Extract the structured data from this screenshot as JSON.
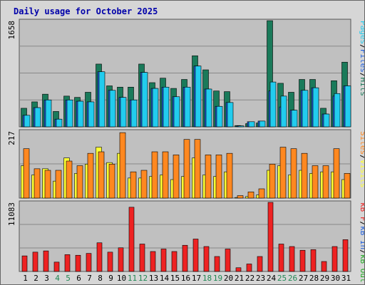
{
  "title": "Daily usage for October 2025",
  "colors": {
    "panel_bg": "#c0c0c0",
    "gridline": "#888888",
    "hits": "#1a7a5a",
    "files": "#2060dd",
    "pages": "#22ccee",
    "visits": "#ffff33",
    "sites": "#ff8820",
    "kbin": "#2060dd",
    "kbout": "#22aa22",
    "kbf": "#ee2222",
    "day_normal": "#000000",
    "day_weekend": "#228855"
  },
  "chart_data": [
    {
      "type": "bar",
      "panel": "hits-files-pages",
      "max_label": "1658",
      "ylim": [
        0,
        1658
      ],
      "side_label": [
        {
          "text": "Pages",
          "color": "#22ccee"
        },
        {
          "text": "/",
          "color": "#000000"
        },
        {
          "text": "Files",
          "color": "#2060dd"
        },
        {
          "text": "/",
          "color": "#000000"
        },
        {
          "text": "Hits",
          "color": "#1a7a5a"
        }
      ],
      "categories": [
        "1",
        "2",
        "3",
        "4",
        "5",
        "6",
        "7",
        "8",
        "9",
        "10",
        "11",
        "12",
        "13",
        "14",
        "15",
        "16",
        "17",
        "18",
        "19",
        "20",
        "21",
        "22",
        "23",
        "24",
        "25",
        "26",
        "27",
        "28",
        "29",
        "30",
        "31"
      ],
      "series": [
        {
          "name": "Hits",
          "values": [
            290,
            390,
            510,
            240,
            480,
            460,
            540,
            980,
            640,
            620,
            620,
            980,
            690,
            760,
            600,
            740,
            1110,
            890,
            560,
            550,
            20,
            50,
            60,
            1658,
            680,
            540,
            740,
            740,
            290,
            720,
            1010
          ]
        },
        {
          "name": "Files",
          "values": [
            180,
            300,
            420,
            120,
            420,
            400,
            390,
            860,
            570,
            460,
            420,
            850,
            600,
            620,
            470,
            620,
            950,
            590,
            320,
            380,
            15,
            80,
            90,
            560,
            310,
            260,
            570,
            610,
            200,
            480,
            640
          ]
        },
        {
          "name": "Pages",
          "values": [
            180,
            300,
            420,
            120,
            420,
            400,
            390,
            860,
            570,
            460,
            420,
            850,
            600,
            620,
            470,
            620,
            950,
            590,
            320,
            380,
            15,
            80,
            90,
            700,
            480,
            260,
            570,
            610,
            200,
            520,
            640
          ]
        }
      ]
    },
    {
      "type": "bar",
      "panel": "visits-sites",
      "max_label": "217",
      "ylim": [
        0,
        217
      ],
      "side_label": [
        {
          "text": "Sites",
          "color": "#ff8820"
        },
        {
          "text": "/",
          "color": "#000000"
        },
        {
          "text": "Visits",
          "color": "#ffff33"
        }
      ],
      "categories": [
        "1",
        "2",
        "3",
        "4",
        "5",
        "6",
        "7",
        "8",
        "9",
        "10",
        "11",
        "12",
        "13",
        "14",
        "15",
        "16",
        "17",
        "18",
        "19",
        "20",
        "21",
        "22",
        "23",
        "24",
        "25",
        "26",
        "27",
        "28",
        "29",
        "30",
        "31"
      ],
      "series": [
        {
          "name": "Visits",
          "values": [
            105,
            75,
            95,
            55,
            130,
            80,
            110,
            165,
            115,
            145,
            65,
            65,
            70,
            75,
            60,
            70,
            130,
            75,
            70,
            85,
            2,
            5,
            10,
            90,
            105,
            75,
            90,
            80,
            85,
            85,
            60
          ]
        },
        {
          "name": "Sites",
          "values": [
            160,
            95,
            90,
            90,
            120,
            105,
            145,
            150,
            110,
            212,
            85,
            90,
            150,
            150,
            140,
            190,
            190,
            140,
            140,
            145,
            8,
            20,
            30,
            110,
            165,
            160,
            145,
            105,
            105,
            160,
            80
          ]
        }
      ]
    },
    {
      "type": "bar",
      "panel": "kbytes",
      "max_label": "11083",
      "ylim": [
        0,
        11083
      ],
      "side_label": [
        {
          "text": "kB F",
          "color": "#ee2222"
        },
        {
          "text": "/",
          "color": "#000000"
        },
        {
          "text": "kB In",
          "color": "#2060dd"
        },
        {
          "text": "/",
          "color": "#000000"
        },
        {
          "text": "kB Out",
          "color": "#22aa22"
        }
      ],
      "categories": [
        "1",
        "2",
        "3",
        "4",
        "5",
        "6",
        "7",
        "8",
        "9",
        "10",
        "11",
        "12",
        "13",
        "14",
        "15",
        "16",
        "17",
        "18",
        "19",
        "20",
        "21",
        "22",
        "23",
        "24",
        "25",
        "26",
        "27",
        "28",
        "29",
        "30",
        "31"
      ],
      "series": [
        {
          "name": "kB F",
          "values": [
            2500,
            3100,
            3300,
            1500,
            2700,
            2600,
            2900,
            4600,
            3100,
            3800,
            10300,
            4400,
            3200,
            3600,
            3200,
            4200,
            5200,
            4000,
            2400,
            3600,
            600,
            1200,
            2400,
            11083,
            4400,
            4000,
            3400,
            3500,
            1600,
            4000,
            5100
          ]
        }
      ]
    }
  ],
  "x_labels": [
    {
      "text": "1",
      "weekend": false
    },
    {
      "text": "2",
      "weekend": false
    },
    {
      "text": "3",
      "weekend": false
    },
    {
      "text": "4",
      "weekend": true
    },
    {
      "text": "5",
      "weekend": true
    },
    {
      "text": "6",
      "weekend": false
    },
    {
      "text": "7",
      "weekend": false
    },
    {
      "text": "8",
      "weekend": false
    },
    {
      "text": "9",
      "weekend": false
    },
    {
      "text": "10",
      "weekend": false
    },
    {
      "text": "11",
      "weekend": true
    },
    {
      "text": "12",
      "weekend": true
    },
    {
      "text": "13",
      "weekend": false
    },
    {
      "text": "14",
      "weekend": false
    },
    {
      "text": "15",
      "weekend": false
    },
    {
      "text": "16",
      "weekend": false
    },
    {
      "text": "17",
      "weekend": false
    },
    {
      "text": "18",
      "weekend": true
    },
    {
      "text": "19",
      "weekend": true
    },
    {
      "text": "20",
      "weekend": false
    },
    {
      "text": "21",
      "weekend": false
    },
    {
      "text": "22",
      "weekend": false
    },
    {
      "text": "23",
      "weekend": false
    },
    {
      "text": "24",
      "weekend": false
    },
    {
      "text": "25",
      "weekend": true
    },
    {
      "text": "26",
      "weekend": true
    },
    {
      "text": "27",
      "weekend": false
    },
    {
      "text": "28",
      "weekend": false
    },
    {
      "text": "29",
      "weekend": false
    },
    {
      "text": "30",
      "weekend": false
    },
    {
      "text": "31",
      "weekend": false
    }
  ]
}
